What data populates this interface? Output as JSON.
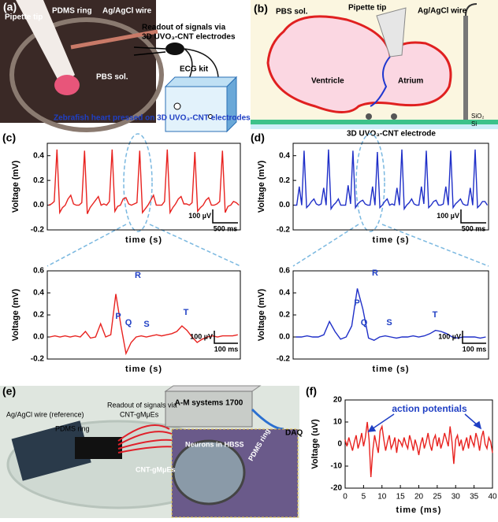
{
  "panels": {
    "a": {
      "label": "(a)",
      "texts": [
        "Pipette tip",
        "PDMS ring",
        "Ag/AgCl wire",
        "Readout of signals via",
        "3D UVO₃-CNT electrodes",
        "PBS sol.",
        "ECG kit",
        "Zebrafish heart pressed on 3D UVO₃-CNT electrodes"
      ]
    },
    "b": {
      "label": "(b)",
      "texts": [
        "PBS sol.",
        "Pipette tip",
        "Ag/AgCl wire",
        "Ventricle",
        "Atrium",
        "SiO₂",
        "Si",
        "3D UVO₃-CNT electrode"
      ]
    },
    "c": {
      "label": "(c)"
    },
    "d": {
      "label": "(d)"
    },
    "e": {
      "label": "(e)",
      "texts": [
        "A-M systems 1700",
        "Ag/AgCl wire (reference)",
        "Readout of signals via",
        "CNT-gMμEs",
        "PDMS ring",
        "DAQ",
        "Neurons in HBSS",
        "PDMS ring",
        "CNT-gMμEs"
      ]
    },
    "f": {
      "label": "(f)"
    }
  },
  "chart_data": [
    {
      "type": "line",
      "y_label": "Voltage (mV)",
      "x_label": "time (s)",
      "color": "#e8221f",
      "ylim": [
        -0.2,
        0.5
      ],
      "yticks": [
        -0.2,
        {
          "value": 0,
          "label": "0.0"
        },
        0.2,
        0.4
      ],
      "scale_bar": [
        "100 µV",
        "500 ms"
      ],
      "annotations": [],
      "values": [
        0.0,
        0.01,
        0.03,
        0.45,
        -0.06,
        -0.02,
        0.0,
        0.05,
        0.08,
        0.01,
        0.0,
        0.0,
        0.02,
        0.44,
        -0.07,
        -0.02,
        0.01,
        0.04,
        0.07,
        0.0,
        0.01,
        0.0,
        0.03,
        0.45,
        -0.05,
        -0.01,
        0.0,
        0.05,
        0.06,
        0.01,
        0.0,
        0.01,
        0.02,
        0.44,
        -0.06,
        -0.03,
        0.0,
        0.04,
        0.08,
        0.0,
        0.0,
        0.0,
        0.03,
        0.45,
        -0.06,
        -0.02,
        0.01,
        0.05,
        0.07,
        0.01,
        0.01,
        0.0,
        0.02,
        0.43,
        -0.05,
        -0.02,
        0.0,
        0.04,
        0.06,
        0.0,
        0.0,
        0.01,
        0.03,
        0.44,
        -0.06,
        -0.01,
        0.0,
        0.03,
        0.02,
        0.0
      ]
    },
    {
      "type": "line",
      "y_label": "Voltage (mV)",
      "x_label": "time (s)",
      "color": "#e8221f",
      "ylim": [
        -0.2,
        0.6
      ],
      "yticks": [
        -0.2,
        {
          "value": 0,
          "label": "0.0"
        },
        0.2,
        0.4,
        0.6
      ],
      "scale_bar": [
        "100 µV",
        "100 ms"
      ],
      "annotations": [
        "P",
        "Q",
        "R",
        "S",
        "T"
      ],
      "values": [
        0.0,
        0.01,
        0.0,
        0.01,
        0.0,
        0.01,
        0.0,
        0.05,
        -0.01,
        0.0,
        0.12,
        0.0,
        0.02,
        0.39,
        0.1,
        -0.15,
        -0.05,
        0.0,
        0.01,
        0.0,
        0.01,
        0.02,
        0.01,
        0.02,
        0.03,
        0.05,
        0.1,
        0.06,
        0.0,
        -0.05,
        -0.02,
        0.0,
        0.01,
        0.0,
        0.01,
        0.01,
        0.01,
        0.02
      ]
    },
    {
      "type": "line",
      "y_label": "Voltage (mV)",
      "x_label": "time (s)",
      "color": "#1f2fc8",
      "ylim": [
        -0.2,
        0.5
      ],
      "yticks": [
        -0.2,
        {
          "value": 0,
          "label": "0.0"
        },
        0.2,
        0.4
      ],
      "scale_bar": [
        "100 µV",
        "500 ms"
      ],
      "annotations": [],
      "values": [
        0.0,
        0.0,
        0.15,
        0.0,
        0.44,
        -0.02,
        0.0,
        0.03,
        0.05,
        0.01,
        0.0,
        0.01,
        0.14,
        0.0,
        0.45,
        -0.03,
        0.0,
        0.02,
        0.05,
        0.0,
        0.0,
        0.0,
        0.16,
        0.01,
        0.44,
        -0.02,
        0.01,
        0.03,
        0.04,
        0.01,
        0.0,
        0.0,
        0.15,
        0.0,
        0.43,
        -0.02,
        0.0,
        0.03,
        0.05,
        0.0,
        0.01,
        0.0,
        0.14,
        0.0,
        0.45,
        -0.03,
        0.0,
        0.02,
        0.05,
        0.01,
        0.0,
        0.0,
        0.15,
        0.01,
        0.44,
        -0.02,
        0.0,
        0.03,
        0.04,
        0.0,
        0.0,
        0.01,
        0.15,
        0.0,
        0.44,
        -0.02,
        0.01,
        0.03,
        0.05,
        0.01,
        0.0,
        0.0,
        0.14,
        0.0,
        0.45,
        -0.02,
        0.0,
        0.03,
        0.03,
        0.0
      ]
    },
    {
      "type": "line",
      "y_label": "Voltage (mV)",
      "x_label": "time (s)",
      "color": "#1f2fc8",
      "ylim": [
        -0.2,
        0.6
      ],
      "yticks": [
        -0.2,
        {
          "value": 0,
          "label": "0.0"
        },
        0.2,
        0.4,
        0.6
      ],
      "scale_bar": [
        "100 µV",
        "100 ms"
      ],
      "annotations": [
        "P",
        "Q",
        "R",
        "S",
        "T"
      ],
      "values": [
        0.0,
        0.0,
        0.01,
        0.0,
        0.0,
        0.02,
        0.14,
        0.05,
        -0.02,
        0.0,
        0.1,
        0.44,
        0.25,
        -0.01,
        -0.03,
        0.0,
        0.01,
        0.0,
        -0.01,
        0.0,
        0.0,
        0.01,
        0.0,
        0.01,
        0.03,
        0.06,
        0.05,
        0.03,
        0.0,
        -0.01,
        0.0,
        0.0,
        0.0,
        -0.01,
        0.0
      ]
    },
    {
      "type": "line",
      "y_label": "Voltage (uV)",
      "x_label": "time (ms)",
      "color": "#e8221f",
      "xlim": [
        0,
        40
      ],
      "xticks": [
        0,
        5,
        10,
        15,
        20,
        25,
        30,
        35,
        40
      ],
      "ylim": [
        -20,
        20
      ],
      "yticks": [
        -20,
        -10,
        0,
        10,
        20
      ],
      "annotations": [
        "action potentials"
      ],
      "x": [
        0,
        0.5,
        1,
        1.5,
        2,
        2.5,
        3,
        3.5,
        4,
        4.5,
        5,
        5.5,
        6,
        6.5,
        7,
        7.5,
        8,
        8.5,
        9,
        9.5,
        10,
        10.5,
        11,
        11.5,
        12,
        12.5,
        13,
        13.5,
        14,
        14.5,
        15,
        15.5,
        16,
        16.5,
        17,
        17.5,
        18,
        18.5,
        19,
        19.5,
        20,
        20.5,
        21,
        21.5,
        22,
        22.5,
        23,
        23.5,
        24,
        24.5,
        25,
        25.5,
        26,
        26.5,
        27,
        27.5,
        28,
        28.5,
        29,
        29.5,
        30,
        30.5,
        31,
        31.5,
        32,
        32.5,
        33,
        33.5,
        34,
        34.5,
        35,
        35.5,
        36,
        36.5,
        37,
        37.5,
        38,
        38.5,
        39,
        39.5,
        40
      ],
      "values": [
        2,
        -1,
        3,
        0,
        -3,
        1,
        4,
        -2,
        1,
        5,
        -1,
        3,
        10,
        2,
        -15,
        -3,
        4,
        0,
        -4,
        6,
        8,
        2,
        -3,
        1,
        4,
        -2,
        0,
        3,
        -4,
        2,
        1,
        -1,
        3,
        0,
        -2,
        4,
        1,
        -3,
        2,
        -1,
        -5,
        0,
        3,
        -2,
        1,
        5,
        0,
        -3,
        2,
        4,
        -1,
        3,
        -2,
        1,
        5,
        2,
        -1,
        8,
        1,
        -9,
        2,
        4,
        -1,
        2,
        -3,
        0,
        3,
        -2,
        4,
        1,
        -1,
        5,
        2,
        -3,
        3,
        6,
        0,
        -2,
        3,
        1,
        -4
      ]
    }
  ]
}
